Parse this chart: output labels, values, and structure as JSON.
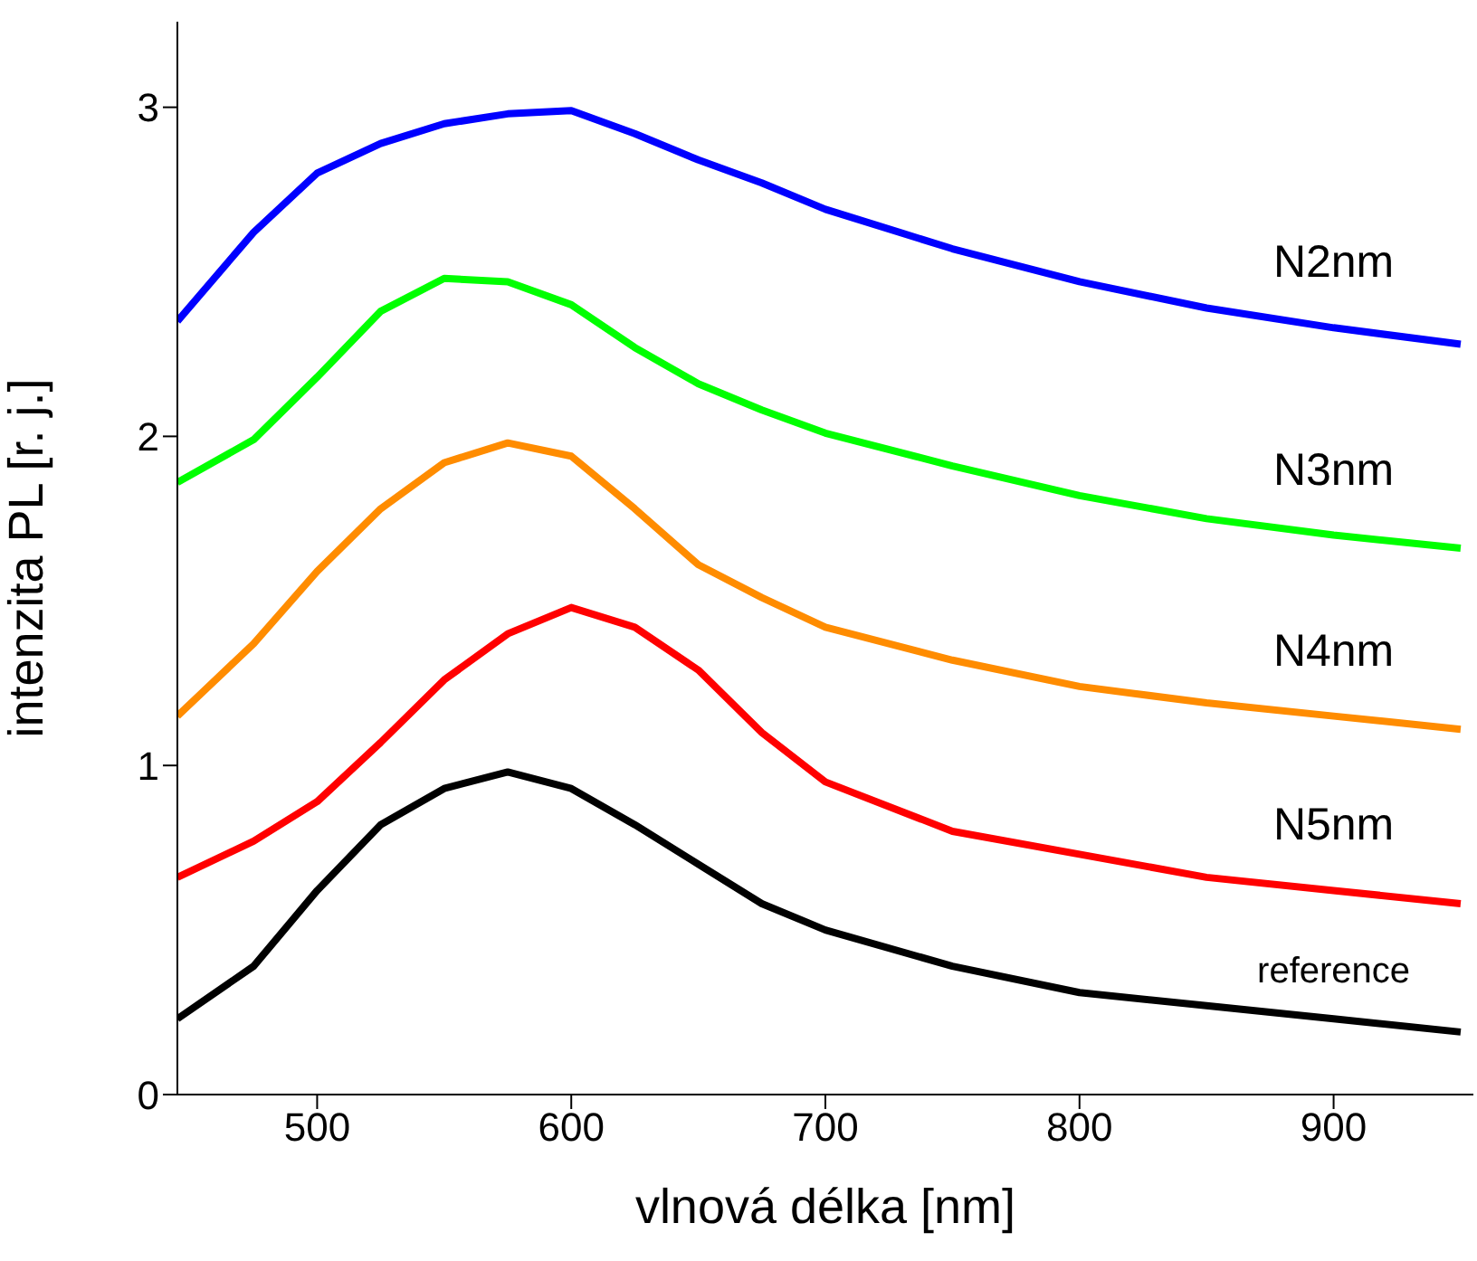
{
  "chart_data": {
    "type": "line",
    "xlabel": "vlnová délka [nm]",
    "ylabel": "intenzita PL [r. j.]",
    "x": [
      445,
      475,
      500,
      525,
      550,
      575,
      600,
      625,
      650,
      675,
      700,
      750,
      800,
      850,
      900,
      950
    ],
    "xlim": [
      445,
      955
    ],
    "xticks": [
      500,
      600,
      700,
      800,
      900
    ],
    "ylim": [
      0,
      3.26
    ],
    "yticks": [
      0,
      1,
      2,
      3
    ],
    "grid": false,
    "legend": false,
    "marker": "none",
    "line_style": "solid",
    "series": [
      {
        "name": "N2nm",
        "color": "#0000ff",
        "values": [
          2.35,
          2.62,
          2.8,
          2.89,
          2.95,
          2.98,
          2.99,
          2.92,
          2.84,
          2.77,
          2.69,
          2.57,
          2.47,
          2.39,
          2.33,
          2.28
        ]
      },
      {
        "name": "N3nm",
        "color": "#00ff00",
        "values": [
          1.86,
          1.99,
          2.18,
          2.38,
          2.48,
          2.47,
          2.4,
          2.27,
          2.16,
          2.08,
          2.01,
          1.91,
          1.82,
          1.75,
          1.7,
          1.66
        ]
      },
      {
        "name": "N4nm",
        "color": "#ff8c00",
        "values": [
          1.15,
          1.37,
          1.59,
          1.78,
          1.92,
          1.98,
          1.94,
          1.78,
          1.61,
          1.51,
          1.42,
          1.32,
          1.24,
          1.19,
          1.15,
          1.11
        ]
      },
      {
        "name": "N5nm",
        "color": "#ff0000",
        "values": [
          0.66,
          0.77,
          0.89,
          1.07,
          1.26,
          1.4,
          1.48,
          1.42,
          1.29,
          1.1,
          0.95,
          0.8,
          0.73,
          0.66,
          0.62,
          0.58
        ]
      },
      {
        "name": "reference",
        "color": "#000000",
        "values": [
          0.23,
          0.39,
          0.62,
          0.82,
          0.93,
          0.98,
          0.93,
          0.82,
          0.7,
          0.58,
          0.5,
          0.39,
          0.31,
          0.27,
          0.23,
          0.19
        ]
      }
    ]
  }
}
